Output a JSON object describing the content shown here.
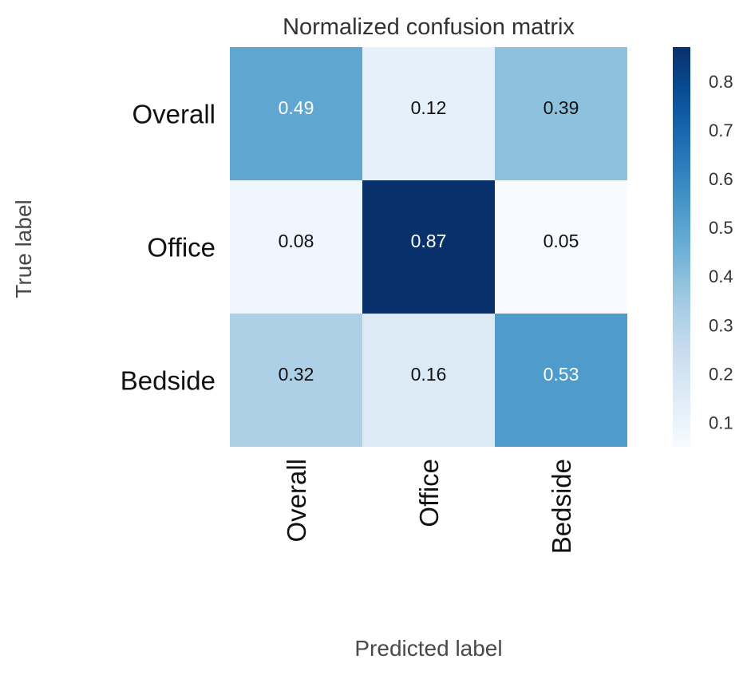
{
  "chart_data": {
    "type": "heatmap",
    "title": "Normalized confusion matrix",
    "xlabel": "Predicted label",
    "ylabel": "True label",
    "x_categories": [
      "Overall",
      "Office",
      "Bedside"
    ],
    "y_categories": [
      "Overall",
      "Office",
      "Bedside"
    ],
    "values": [
      [
        0.49,
        0.12,
        0.39
      ],
      [
        0.08,
        0.87,
        0.05
      ],
      [
        0.32,
        0.16,
        0.53
      ]
    ],
    "colormap": "Blues",
    "colorbar": {
      "range": [
        0.05,
        0.87
      ],
      "ticks": [
        "0.1",
        "0.2",
        "0.3",
        "0.4",
        "0.5",
        "0.6",
        "0.7",
        "0.8"
      ]
    },
    "grid": false
  }
}
